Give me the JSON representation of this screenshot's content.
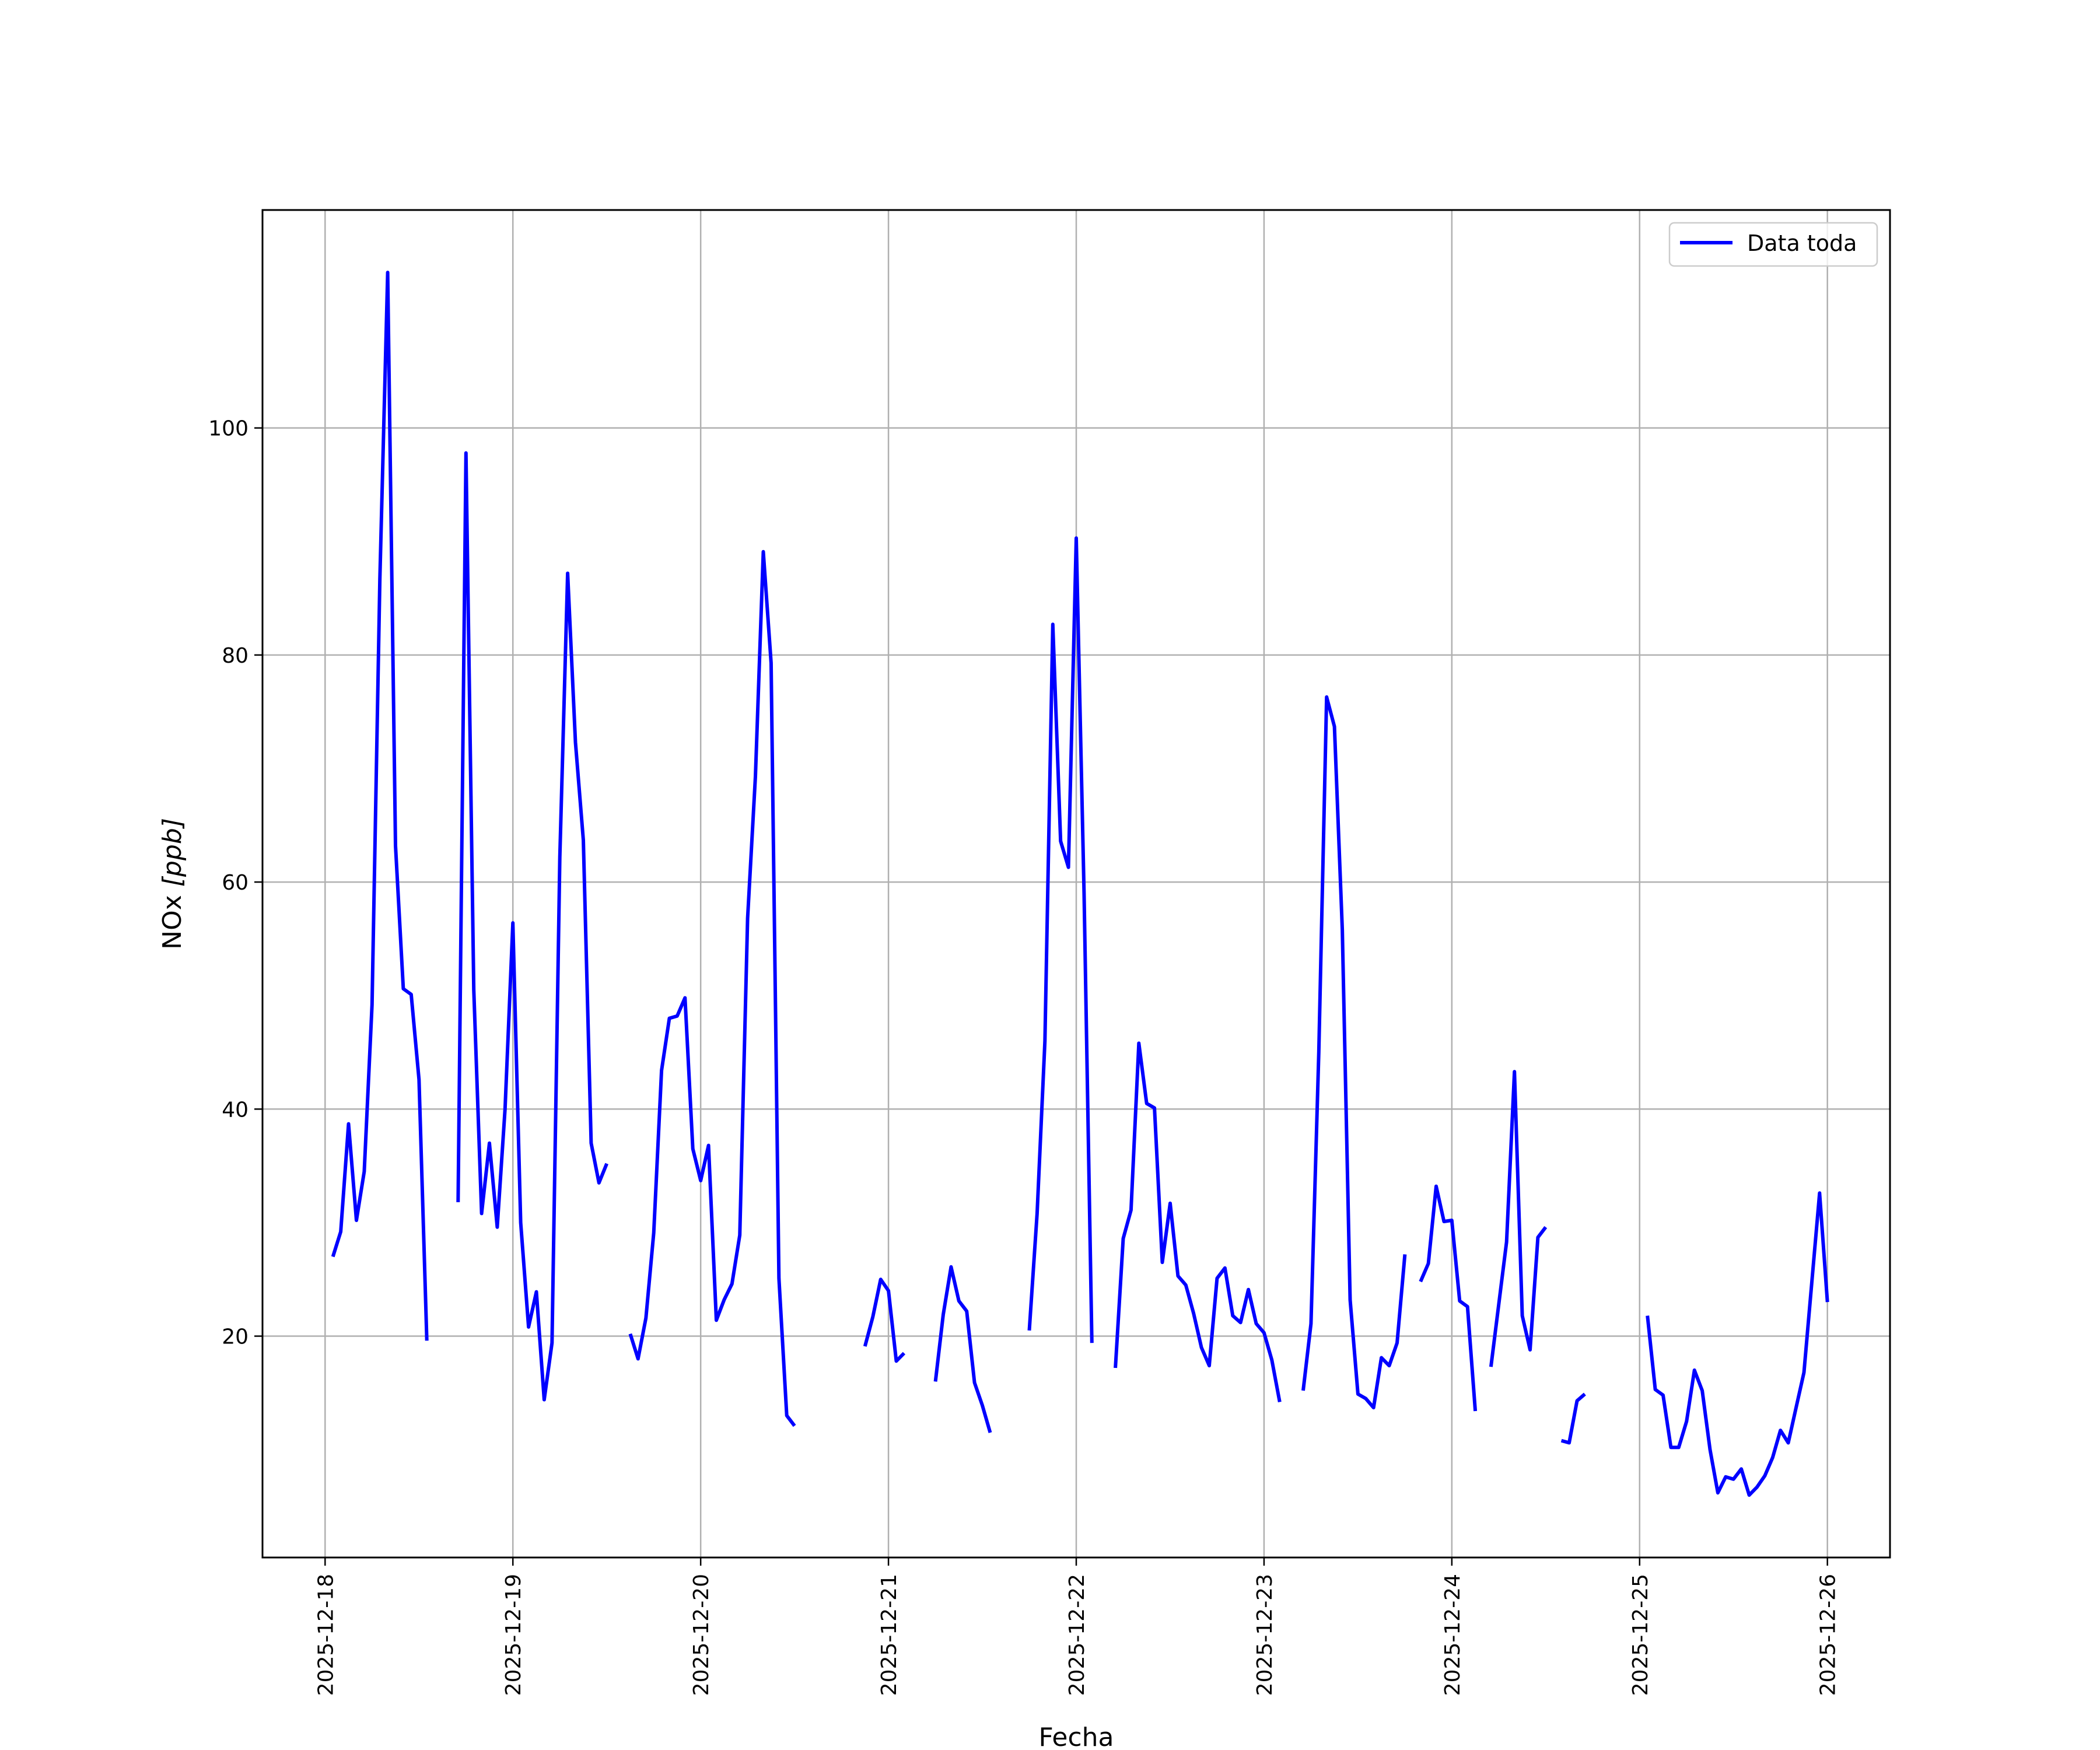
{
  "chart_data": {
    "type": "line",
    "xlabel": "Fecha",
    "ylabel": "NOx [ppb]",
    "ylabel_parts": {
      "main": "NOx ",
      "unit": "[ppb]"
    },
    "x_ticks": [
      "2025-12-18",
      "2025-12-19",
      "2025-12-20",
      "2025-12-21",
      "2025-12-22",
      "2025-12-23",
      "2025-12-24",
      "2025-12-25",
      "2025-12-26"
    ],
    "y_ticks": [
      20,
      40,
      60,
      80,
      100
    ],
    "xlim": [
      "2025-12-17T16:00",
      "2025-12-26T08:00"
    ],
    "ylim": [
      0.5,
      119.2
    ],
    "grid": true,
    "legend_position": "top-right",
    "series": [
      {
        "name": "Data toda",
        "color": "#0000ff",
        "x": [
          "2025-12-18T01:00",
          "2025-12-18T02:00",
          "2025-12-18T03:00",
          "2025-12-18T04:00",
          "2025-12-18T05:00",
          "2025-12-18T06:00",
          "2025-12-18T07:00",
          "2025-12-18T08:00",
          "2025-12-18T09:00",
          "2025-12-18T10:00",
          "2025-12-18T11:00",
          "2025-12-18T12:00",
          "2025-12-18T13:00",
          "2025-12-18T17:00",
          "2025-12-18T18:00",
          "2025-12-18T19:00",
          "2025-12-18T20:00",
          "2025-12-18T21:00",
          "2025-12-18T22:00",
          "2025-12-18T23:00",
          "2025-12-19T00:00",
          "2025-12-19T01:00",
          "2025-12-19T02:00",
          "2025-12-19T03:00",
          "2025-12-19T04:00",
          "2025-12-19T05:00",
          "2025-12-19T06:00",
          "2025-12-19T07:00",
          "2025-12-19T08:00",
          "2025-12-19T09:00",
          "2025-12-19T10:00",
          "2025-12-19T11:00",
          "2025-12-19T12:00",
          "2025-12-19T15:00",
          "2025-12-19T16:00",
          "2025-12-19T17:00",
          "2025-12-19T18:00",
          "2025-12-19T19:00",
          "2025-12-19T20:00",
          "2025-12-19T21:00",
          "2025-12-19T22:00",
          "2025-12-19T23:00",
          "2025-12-20T00:00",
          "2025-12-20T01:00",
          "2025-12-20T02:00",
          "2025-12-20T03:00",
          "2025-12-20T04:00",
          "2025-12-20T05:00",
          "2025-12-20T06:00",
          "2025-12-20T07:00",
          "2025-12-20T08:00",
          "2025-12-20T09:00",
          "2025-12-20T10:00",
          "2025-12-20T11:00",
          "2025-12-20T12:00",
          "2025-12-20T21:00",
          "2025-12-20T22:00",
          "2025-12-20T23:00",
          "2025-12-21T00:00",
          "2025-12-21T01:00",
          "2025-12-21T02:00",
          "2025-12-21T06:00",
          "2025-12-21T07:00",
          "2025-12-21T08:00",
          "2025-12-21T09:00",
          "2025-12-21T10:00",
          "2025-12-21T11:00",
          "2025-12-21T12:00",
          "2025-12-21T13:00",
          "2025-12-21T18:00",
          "2025-12-21T19:00",
          "2025-12-21T20:00",
          "2025-12-21T21:00",
          "2025-12-21T22:00",
          "2025-12-21T23:00",
          "2025-12-22T00:00",
          "2025-12-22T01:00",
          "2025-12-22T02:00",
          "2025-12-22T05:00",
          "2025-12-22T06:00",
          "2025-12-22T07:00",
          "2025-12-22T08:00",
          "2025-12-22T09:00",
          "2025-12-22T10:00",
          "2025-12-22T11:00",
          "2025-12-22T12:00",
          "2025-12-22T13:00",
          "2025-12-22T14:00",
          "2025-12-22T15:00",
          "2025-12-22T16:00",
          "2025-12-22T17:00",
          "2025-12-22T18:00",
          "2025-12-22T19:00",
          "2025-12-22T20:00",
          "2025-12-22T21:00",
          "2025-12-22T22:00",
          "2025-12-22T23:00",
          "2025-12-23T00:00",
          "2025-12-23T01:00",
          "2025-12-23T02:00",
          "2025-12-23T05:00",
          "2025-12-23T06:00",
          "2025-12-23T07:00",
          "2025-12-23T08:00",
          "2025-12-23T09:00",
          "2025-12-23T10:00",
          "2025-12-23T11:00",
          "2025-12-23T12:00",
          "2025-12-23T13:00",
          "2025-12-23T14:00",
          "2025-12-23T15:00",
          "2025-12-23T16:00",
          "2025-12-23T17:00",
          "2025-12-23T18:00",
          "2025-12-23T20:00",
          "2025-12-23T21:00",
          "2025-12-23T22:00",
          "2025-12-23T23:00",
          "2025-12-24T00:00",
          "2025-12-24T01:00",
          "2025-12-24T02:00",
          "2025-12-24T03:00",
          "2025-12-24T05:00",
          "2025-12-24T06:00",
          "2025-12-24T07:00",
          "2025-12-24T08:00",
          "2025-12-24T09:00",
          "2025-12-24T10:00",
          "2025-12-24T11:00",
          "2025-12-24T12:00",
          "2025-12-24T14:00",
          "2025-12-24T15:00",
          "2025-12-24T16:00",
          "2025-12-24T17:00",
          "2025-12-25T01:00",
          "2025-12-25T02:00",
          "2025-12-25T03:00",
          "2025-12-25T04:00",
          "2025-12-25T05:00",
          "2025-12-25T06:00",
          "2025-12-25T07:00",
          "2025-12-25T08:00",
          "2025-12-25T09:00",
          "2025-12-25T10:00",
          "2025-12-25T11:00",
          "2025-12-25T12:00",
          "2025-12-25T13:00",
          "2025-12-25T14:00",
          "2025-12-25T15:00",
          "2025-12-25T16:00",
          "2025-12-25T17:00",
          "2025-12-25T18:00",
          "2025-12-25T19:00",
          "2025-12-25T20:00",
          "2025-12-25T21:00",
          "2025-12-25T22:00",
          "2025-12-25T23:00",
          "2025-12-26T00:00"
        ],
        "y": [
          27,
          29.2,
          38.7,
          30.2,
          34.5,
          49.2,
          86.7,
          113.7,
          63.2,
          50.6,
          50.1,
          42.6,
          19.6,
          31.8,
          97.8,
          50.5,
          30.8,
          37.0,
          29.6,
          40.0,
          56.4,
          30.0,
          20.8,
          23.9,
          14.4,
          19.4,
          62.2,
          87.2,
          72.3,
          63.7,
          37.0,
          33.5,
          35.2,
          20.2,
          18.0,
          21.6,
          29.1,
          43.4,
          48.0,
          48.2,
          49.8,
          36.5,
          33.7,
          36.8,
          21.4,
          23.2,
          24.6,
          28.9,
          56.8,
          69.3,
          89.1,
          79.3,
          25.1,
          13.0,
          12.1,
          19.1,
          21.7,
          25.0,
          24.0,
          17.8,
          18.5,
          16.0,
          21.9,
          26.1,
          23.1,
          22.2,
          15.9,
          13.9,
          11.5,
          20.5,
          30.8,
          46.0,
          82.7,
          63.6,
          61.3,
          90.3,
          59.0,
          19.4,
          17.2,
          28.6,
          31.1,
          45.8,
          40.5,
          40.1,
          26.5,
          31.7,
          25.3,
          24.5,
          22.0,
          19.0,
          17.4,
          25.1,
          26.0,
          21.8,
          21.2,
          24.1,
          21.1,
          20.3,
          17.9,
          14.2,
          15.2,
          21.1,
          45.0,
          76.3,
          73.7,
          55.8,
          23.2,
          14.9,
          14.5,
          13.7,
          18.1,
          17.4,
          19.4,
          27.2,
          24.8,
          26.4,
          33.2,
          30.1,
          30.2,
          23.1,
          22.6,
          13.4,
          17.3,
          22.8,
          28.3,
          43.3,
          21.8,
          18.8,
          28.7,
          29.6,
          10.8,
          10.6,
          14.3,
          14.9,
          21.8,
          15.3,
          14.8,
          10.2,
          10.2,
          12.5,
          17.0,
          15.2,
          10.0,
          6.2,
          7.6,
          7.4,
          8.3,
          6.0,
          6.7,
          7.7,
          9.3,
          11.7,
          10.6,
          13.7,
          16.8,
          24.7,
          32.6,
          23.0
        ]
      }
    ]
  }
}
